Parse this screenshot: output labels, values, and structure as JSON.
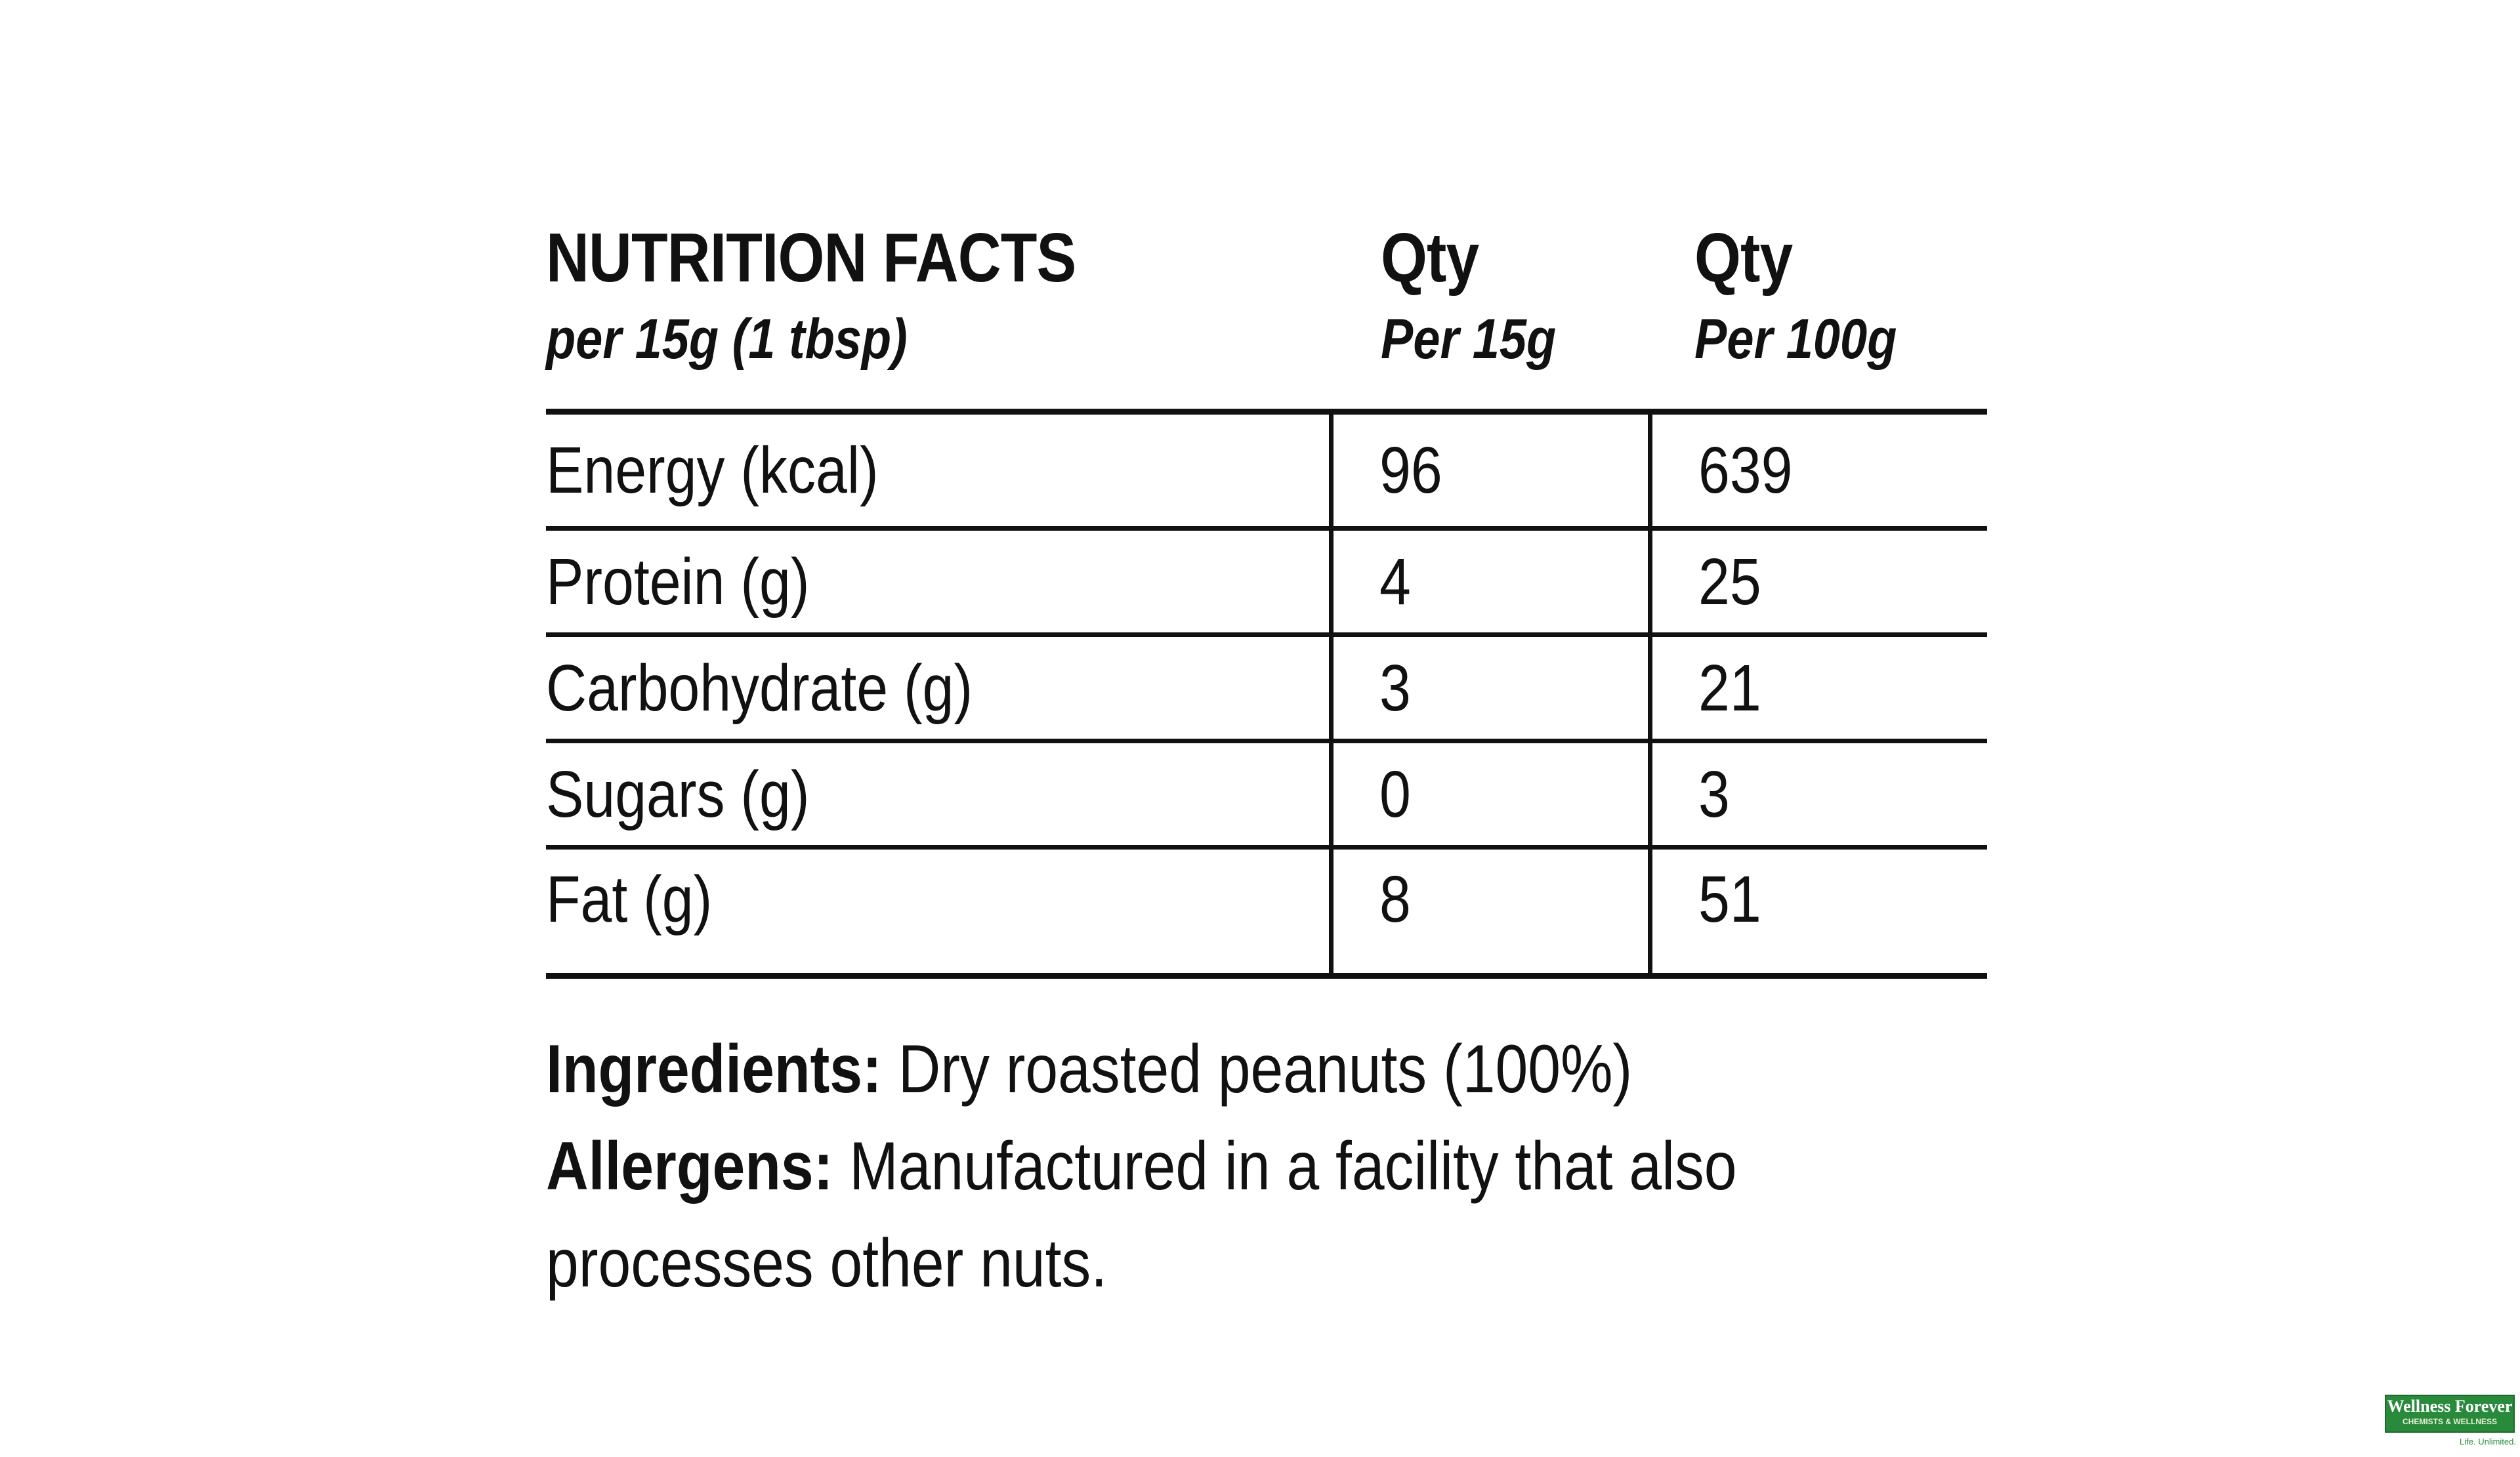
{
  "header": {
    "title": "NUTRITION FACTS",
    "serving": "per 15g (1 tbsp)",
    "col1_title": "Qty",
    "col1_sub": "Per 15g",
    "col2_title": "Qty",
    "col2_sub": "Per 100g"
  },
  "rows": [
    {
      "label": "Energy (kcal)",
      "per15": "96",
      "per100": "639"
    },
    {
      "label": "Protein (g)",
      "per15": "4",
      "per100": "25"
    },
    {
      "label": "Carbohydrate (g)",
      "per15": "3",
      "per100": "21"
    },
    {
      "label": "Sugars (g)",
      "per15": "0",
      "per100": "3"
    },
    {
      "label": "Fat (g)",
      "per15": "8",
      "per100": "51"
    }
  ],
  "notes": {
    "ingredients_label": "Ingredients:",
    "ingredients_text": "Dry roasted peanuts (100%)",
    "allergens_label": "Allergens:",
    "allergens_text": "Manufactured in a facility that also processes other nuts."
  },
  "watermark": {
    "brand": "Wellness Forever",
    "subtitle": "CHEMISTS & WELLNESS",
    "tagline": "Life. Unlimited."
  },
  "colors": {
    "ink": "#111111",
    "background": "#ffffff",
    "brand_green": "#2a8a3c"
  }
}
